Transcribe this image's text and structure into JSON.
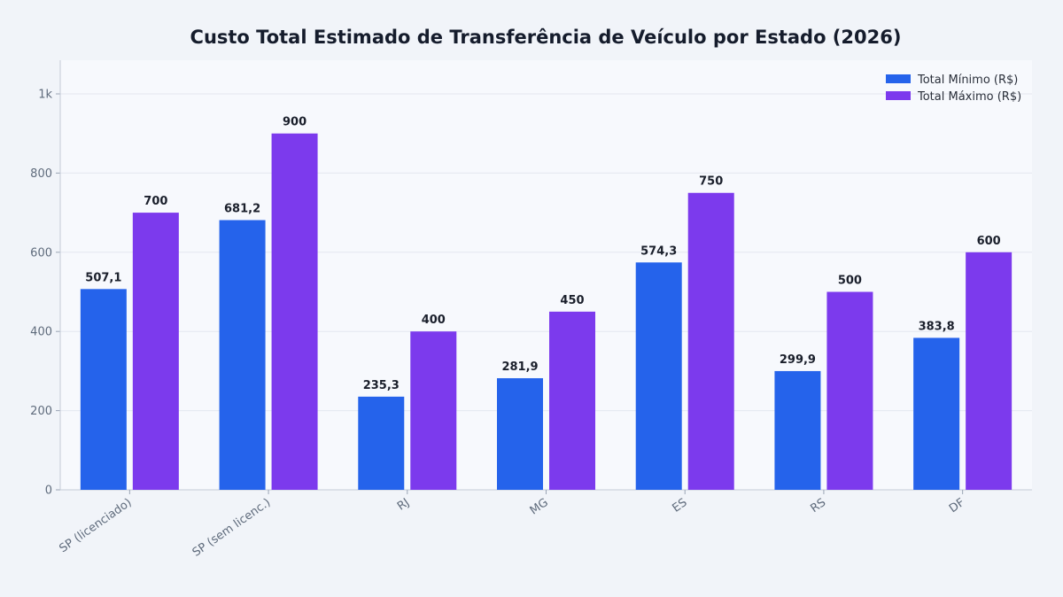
{
  "chart_data": {
    "type": "bar",
    "title": "Custo Total Estimado de Transferência de Veículo por Estado (2026)",
    "xlabel": "",
    "ylabel": "",
    "categories": [
      "SP (licenciado)",
      "SP (sem licenc.)",
      "RJ",
      "MG",
      "ES",
      "RS",
      "DF"
    ],
    "series": [
      {
        "name": "Total Mínimo (R$)",
        "color": "#2563eb",
        "values": [
          507.1,
          681.2,
          235.3,
          281.9,
          574.3,
          299.9,
          383.8
        ],
        "labels": [
          "507,1",
          "681,2",
          "235,3",
          "281,9",
          "574,3",
          "299,9",
          "383,8"
        ]
      },
      {
        "name": "Total Máximo (R$)",
        "color": "#7c3aed",
        "values": [
          700,
          900,
          400,
          450,
          750,
          500,
          600
        ],
        "labels": [
          "700",
          "900",
          "400",
          "450",
          "750",
          "500",
          "600"
        ]
      }
    ],
    "ylim": [
      0,
      1085
    ],
    "yticks": [
      0,
      200,
      400,
      600,
      800,
      1000
    ],
    "ytick_labels": [
      "0",
      "200",
      "400",
      "600",
      "800",
      "1k"
    ],
    "grid": true,
    "legend_position": "top-right"
  }
}
